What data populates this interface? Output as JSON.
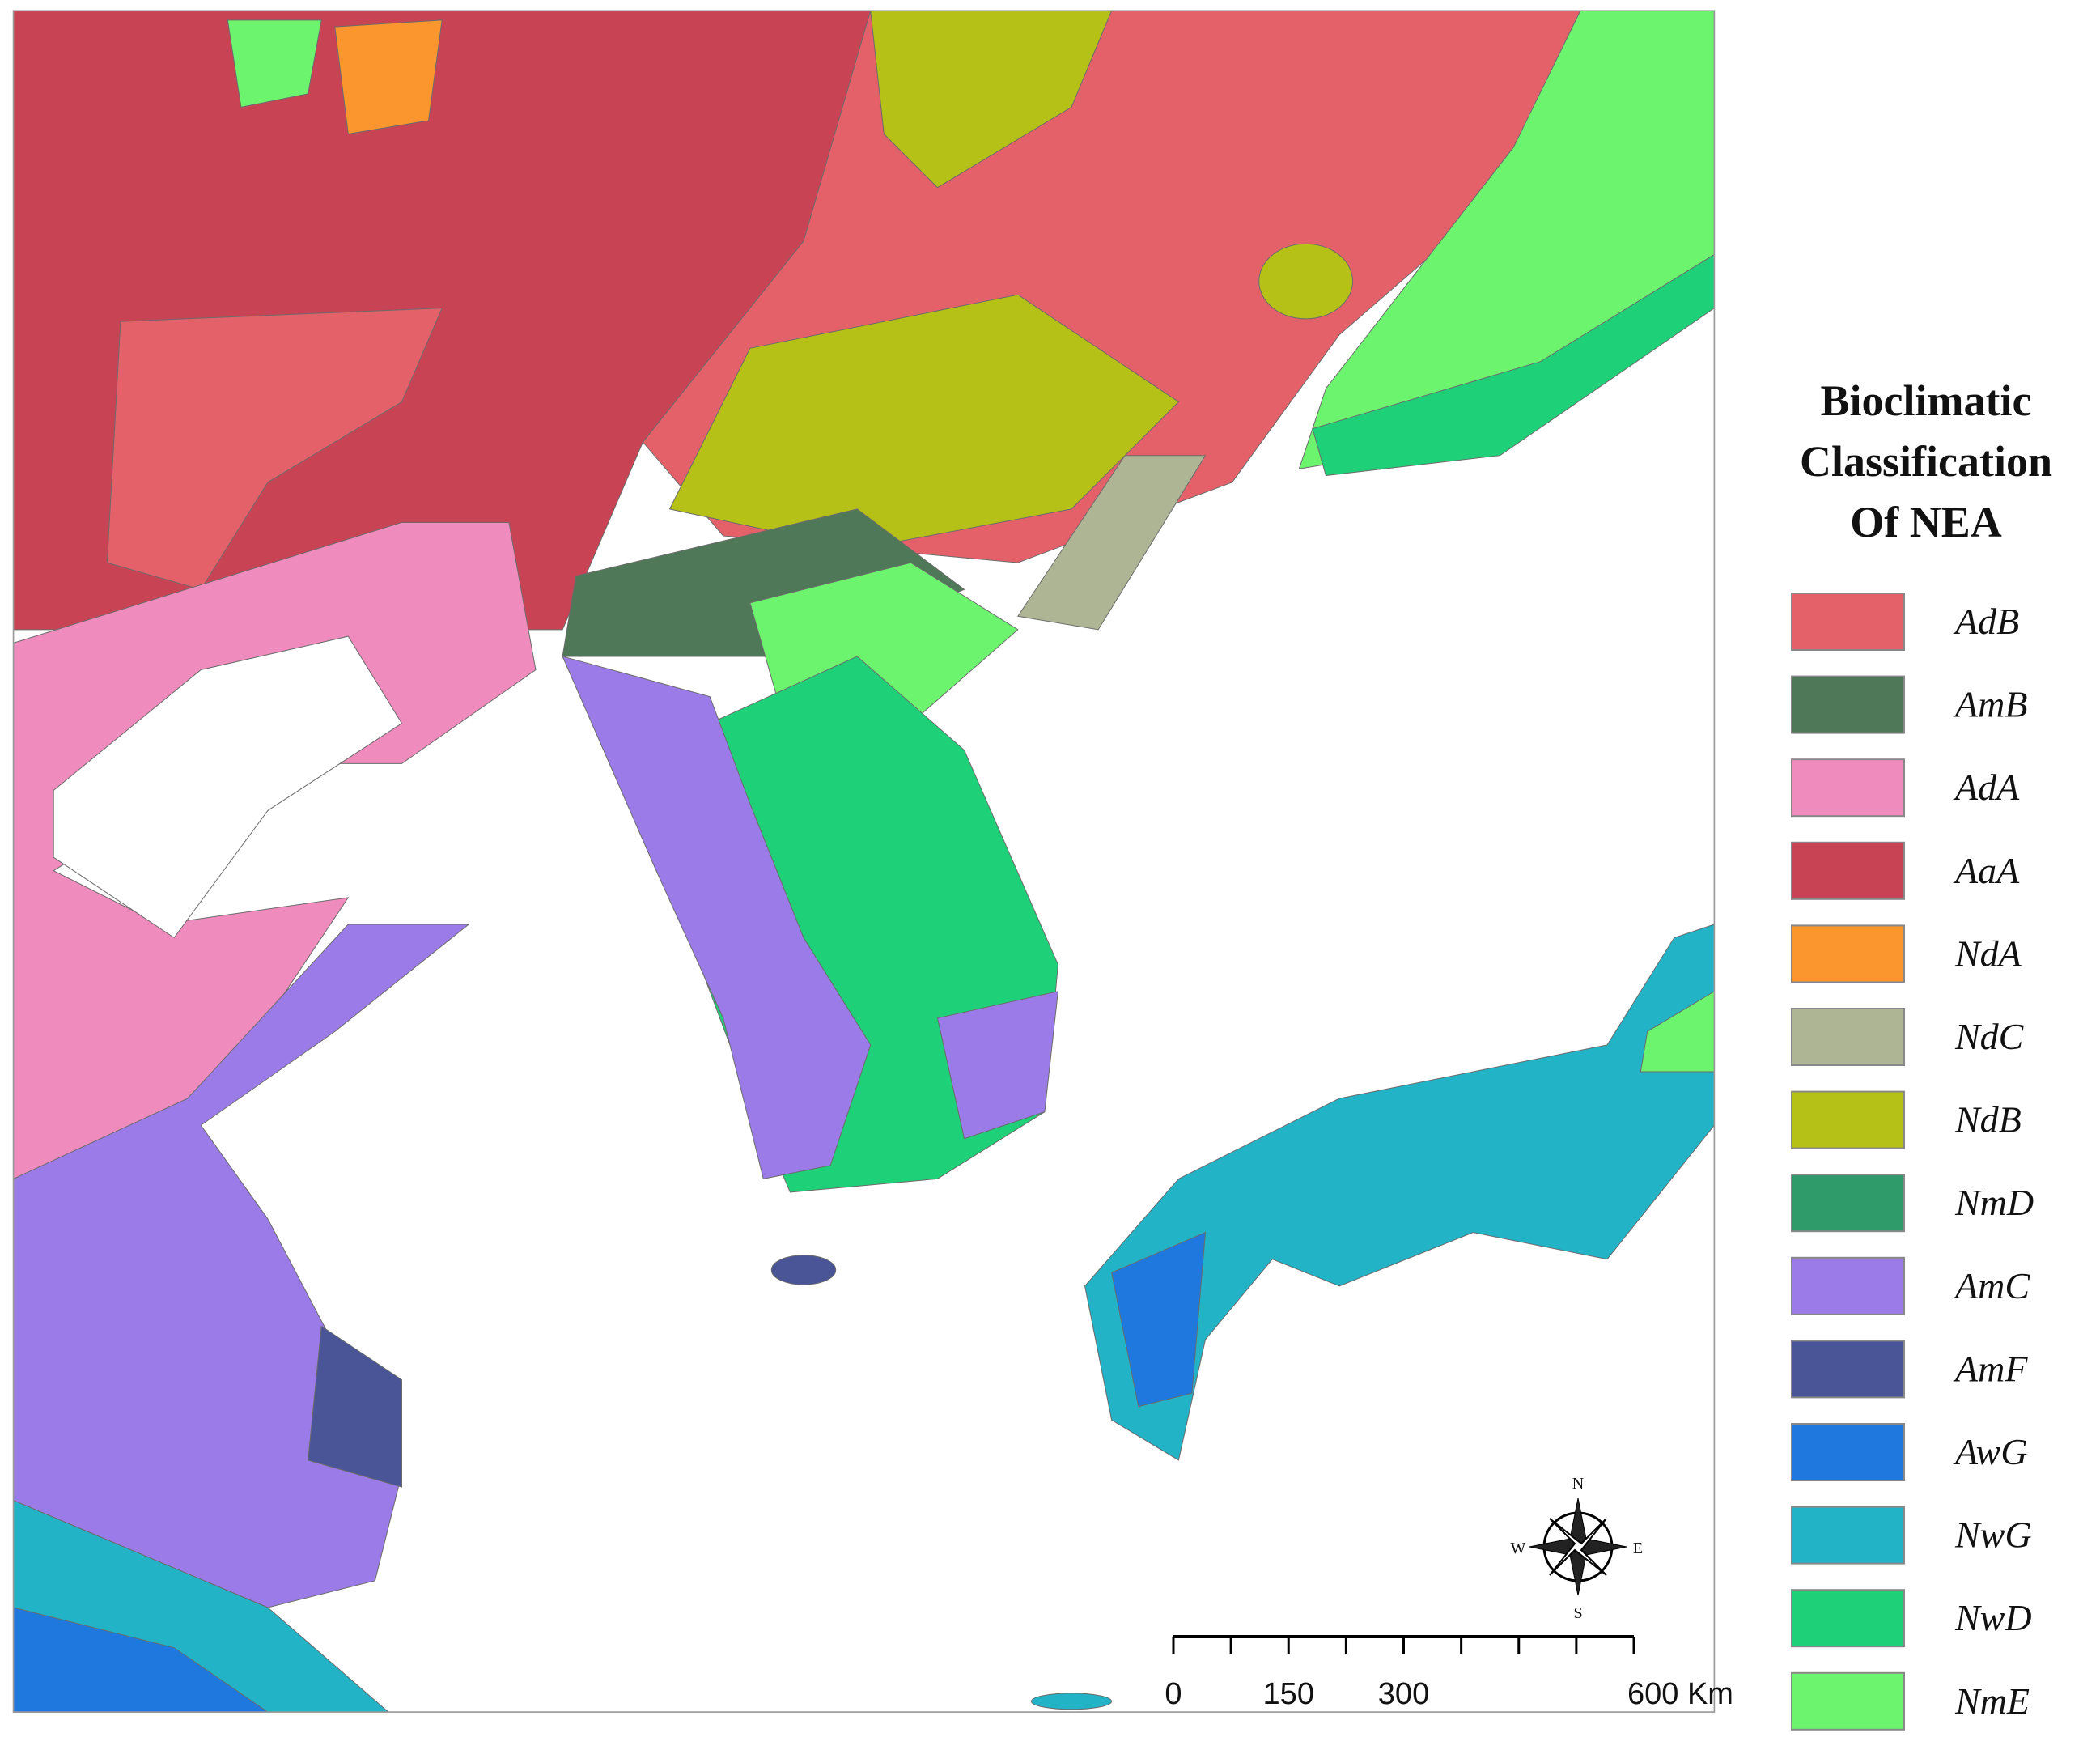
{
  "legend": {
    "title_lines": [
      "Bioclimatic",
      "Classification",
      "Of NEA"
    ],
    "items": [
      {
        "label": "AdB",
        "color": "#e5616a"
      },
      {
        "label": "AmB",
        "color": "#4f7858"
      },
      {
        "label": "AdA",
        "color": "#ef8bbd"
      },
      {
        "label": "AaA",
        "color": "#c84455"
      },
      {
        "label": "NdA",
        "color": "#fb962e"
      },
      {
        "label": "NdC",
        "color": "#aeb594"
      },
      {
        "label": "NdB",
        "color": "#b6c117"
      },
      {
        "label": "NmD",
        "color": "#2f9a6a"
      },
      {
        "label": "AmC",
        "color": "#9b7be8"
      },
      {
        "label": "AmF",
        "color": "#4a5598"
      },
      {
        "label": "AwG",
        "color": "#1f78dd"
      },
      {
        "label": "NwG",
        "color": "#22b3c7"
      },
      {
        "label": "NwD",
        "color": "#1ed178"
      },
      {
        "label": "NmE",
        "color": "#6cf46f"
      }
    ]
  },
  "scale_bar": {
    "labels": [
      "0",
      "150",
      "300",
      "600 Km"
    ]
  },
  "compass": {
    "north": "N",
    "south": "S",
    "east": "E",
    "west": "W"
  }
}
